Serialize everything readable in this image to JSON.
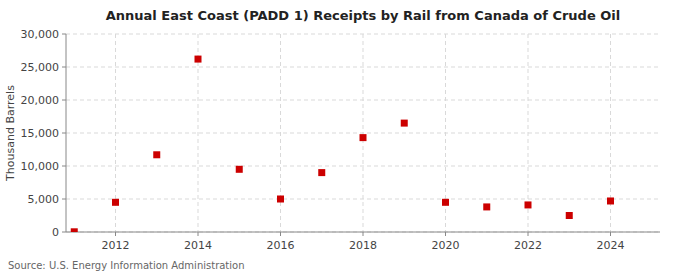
{
  "chart_data": {
    "type": "scatter",
    "title": "Annual East Coast (PADD 1) Receipts by Rail from Canada of Crude Oil",
    "y_label": "Thousand Barrels",
    "annotations": [
      "Source: U.S. Energy Information Administration"
    ],
    "x": [
      2011,
      2012,
      2013,
      2014,
      2015,
      2016,
      2017,
      2018,
      2019,
      2020,
      2021,
      2022,
      2023,
      2024
    ],
    "values": [
      30,
      4500,
      11700,
      26200,
      9500,
      5000,
      9000,
      14300,
      16500,
      4500,
      3800,
      4100,
      2500,
      4700
    ],
    "color": "#cc0000",
    "marker": "square",
    "xlim": [
      2010.8,
      2025.2
    ],
    "xticks": [
      2012,
      2014,
      2016,
      2018,
      2020,
      2022,
      2024
    ],
    "ylim": [
      0,
      30000
    ],
    "yticks": [
      0,
      {
        "value": 5000,
        "label": "5,000"
      },
      {
        "value": 10000,
        "label": "10,000"
      },
      {
        "value": 15000,
        "label": "15,000"
      },
      {
        "value": 20000,
        "label": "20,000"
      },
      {
        "value": 25000,
        "label": "25,000"
      },
      {
        "value": 30000,
        "label": "30,000"
      }
    ],
    "grid": true
  }
}
